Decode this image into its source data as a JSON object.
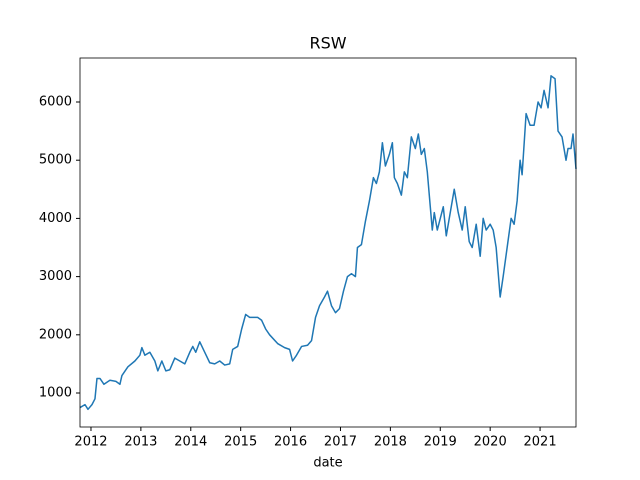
{
  "chart_data": {
    "type": "line",
    "title": "RSW",
    "xlabel": "date",
    "x": [
      2011.78,
      2011.88,
      2011.94,
      2012.02,
      2012.08,
      2012.12,
      2012.18,
      2012.26,
      2012.38,
      2012.5,
      2012.58,
      2012.62,
      2012.74,
      2012.88,
      2012.98,
      2013.02,
      2013.08,
      2013.18,
      2013.28,
      2013.34,
      2013.42,
      2013.5,
      2013.58,
      2013.68,
      2013.78,
      2013.88,
      2013.98,
      2014.04,
      2014.1,
      2014.18,
      2014.28,
      2014.38,
      2014.48,
      2014.58,
      2014.68,
      2014.78,
      2014.84,
      2014.94,
      2015.02,
      2015.1,
      2015.18,
      2015.34,
      2015.42,
      2015.5,
      2015.58,
      2015.74,
      2015.88,
      2015.98,
      2016.04,
      2016.12,
      2016.22,
      2016.34,
      2016.42,
      2016.5,
      2016.58,
      2016.68,
      2016.74,
      2016.82,
      2016.9,
      2016.98,
      2017.06,
      2017.14,
      2017.22,
      2017.3,
      2017.34,
      2017.42,
      2017.5,
      2017.58,
      2017.66,
      2017.72,
      2017.78,
      2017.84,
      2017.9,
      2017.98,
      2018.04,
      2018.08,
      2018.14,
      2018.22,
      2018.28,
      2018.34,
      2018.42,
      2018.5,
      2018.56,
      2018.62,
      2018.68,
      2018.74,
      2018.8,
      2018.84,
      2018.88,
      2018.94,
      2019.0,
      2019.06,
      2019.12,
      2019.2,
      2019.28,
      2019.36,
      2019.44,
      2019.5,
      2019.58,
      2019.64,
      2019.72,
      2019.8,
      2019.86,
      2019.92,
      2020.0,
      2020.06,
      2020.12,
      2020.2,
      2020.26,
      2020.34,
      2020.42,
      2020.48,
      2020.54,
      2020.6,
      2020.64,
      2020.72,
      2020.8,
      2020.88,
      2020.96,
      2021.02,
      2021.08,
      2021.16,
      2021.22,
      2021.3,
      2021.36,
      2021.44,
      2021.52,
      2021.56,
      2021.62,
      2021.66,
      2021.72
    ],
    "series": [
      {
        "name": "RSW",
        "color": "#1f77b4",
        "values": [
          750,
          800,
          720,
          800,
          900,
          1250,
          1250,
          1150,
          1220,
          1200,
          1150,
          1300,
          1450,
          1550,
          1650,
          1780,
          1650,
          1700,
          1550,
          1380,
          1550,
          1380,
          1400,
          1600,
          1550,
          1500,
          1700,
          1800,
          1700,
          1880,
          1700,
          1520,
          1500,
          1550,
          1480,
          1500,
          1750,
          1800,
          2100,
          2350,
          2300,
          2300,
          2250,
          2100,
          2000,
          1850,
          1780,
          1750,
          1550,
          1650,
          1800,
          1820,
          1900,
          2300,
          2500,
          2650,
          2750,
          2500,
          2380,
          2450,
          2750,
          3000,
          3050,
          3000,
          3500,
          3550,
          3950,
          4300,
          4700,
          4600,
          4800,
          5300,
          4900,
          5100,
          5300,
          4700,
          4600,
          4400,
          4800,
          4700,
          5400,
          5200,
          5450,
          5100,
          5200,
          4800,
          4200,
          3800,
          4100,
          3800,
          4000,
          4200,
          3700,
          4100,
          4500,
          4100,
          3800,
          4200,
          3600,
          3500,
          3900,
          3350,
          4000,
          3800,
          3900,
          3800,
          3500,
          2650,
          3000,
          3500,
          4000,
          3900,
          4300,
          5000,
          4750,
          5800,
          5600,
          5600,
          6000,
          5900,
          6200,
          5900,
          6450,
          6400,
          5500,
          5400,
          5000,
          5200,
          5200,
          5450,
          4850
        ]
      }
    ],
    "xlim": [
      2011.78,
      2021.72
    ],
    "xticks": [
      2012,
      2013,
      2014,
      2015,
      2016,
      2017,
      2018,
      2019,
      2020,
      2021
    ],
    "ylim": [
      416,
      6756
    ],
    "yticks": [
      1000,
      2000,
      3000,
      4000,
      5000,
      6000
    ]
  }
}
